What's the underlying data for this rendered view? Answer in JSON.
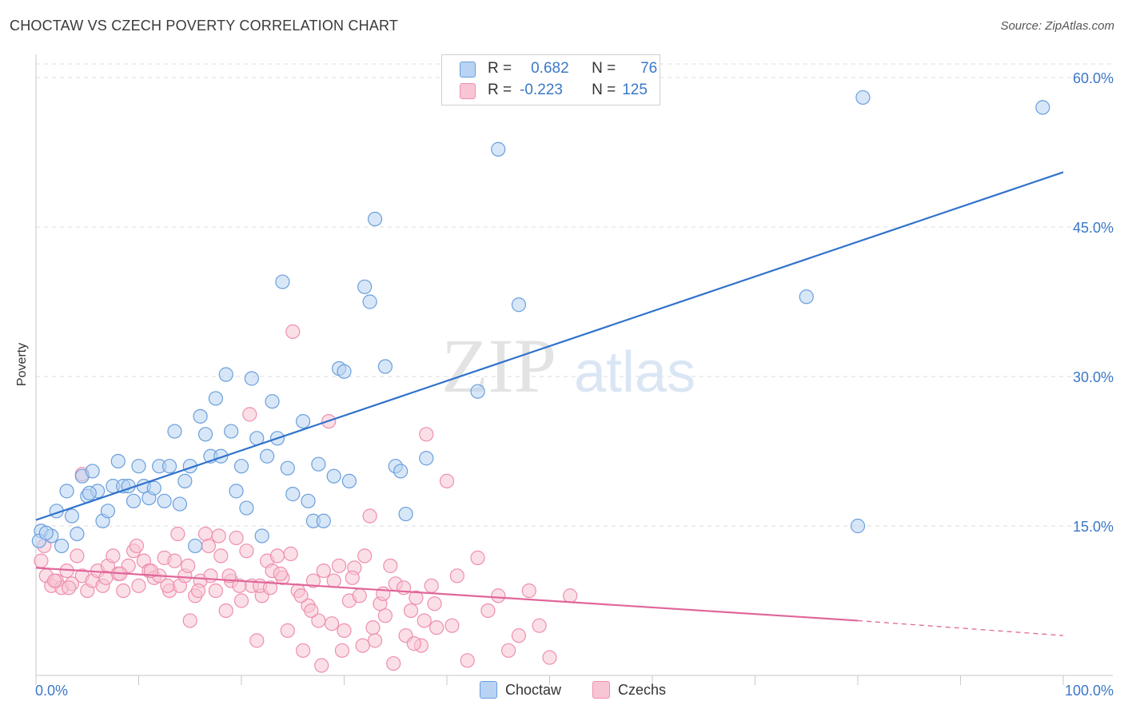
{
  "title": "CHOCTAW VS CZECH POVERTY CORRELATION CHART",
  "source": "Source: ZipAtlas.com",
  "watermark": {
    "zip": "ZIP",
    "atlas": "atlas"
  },
  "legend": {
    "r_label": "R =",
    "n_label": "N =",
    "choctaw": {
      "r": "0.682",
      "n": "76"
    },
    "czechs": {
      "r": "-0.223",
      "n": "125"
    }
  },
  "bottom_legend": {
    "choctaw": "Choctaw",
    "czechs": "Czechs"
  },
  "colors": {
    "choctaw_fill": "#b8d3f3",
    "choctaw_stroke": "#6a9fdc",
    "choctaw_line": "#2f72cc",
    "czechs_fill": "#f8c5d4",
    "czechs_stroke": "#ee8fae",
    "czechs_line": "#e0669a",
    "tick_text": "#3b78c8"
  },
  "chart_data": {
    "type": "scatter",
    "title": "CHOCTAW VS CZECH POVERTY CORRELATION CHART",
    "xlabel": "",
    "ylabel": "Poverty",
    "xlim": [
      0,
      100
    ],
    "ylim": [
      0,
      60.0
    ],
    "x_tick_labels": [
      "0.0%",
      "100.0%"
    ],
    "y_ticks": [
      15,
      30,
      45,
      60
    ],
    "y_tick_labels": [
      "15.0%",
      "30.0%",
      "45.0%",
      "60.0%"
    ],
    "grid": "horizontal dashed",
    "legend_position": "top-center",
    "series": [
      {
        "name": "Choctaw",
        "trend": {
          "x": [
            0,
            100
          ],
          "y": [
            15.6,
            50.5
          ],
          "dashed_from": null
        },
        "points": [
          [
            0.5,
            14.5
          ],
          [
            1.5,
            14.0
          ],
          [
            2.0,
            16.5
          ],
          [
            2.5,
            13.0
          ],
          [
            3.0,
            18.5
          ],
          [
            3.5,
            16.0
          ],
          [
            4.0,
            14.2
          ],
          [
            4.5,
            20.0
          ],
          [
            5.0,
            18.0
          ],
          [
            5.5,
            20.5
          ],
          [
            6.0,
            18.5
          ],
          [
            6.5,
            15.5
          ],
          [
            7.0,
            16.5
          ],
          [
            7.5,
            19.0
          ],
          [
            8.0,
            21.5
          ],
          [
            8.5,
            19.0
          ],
          [
            9.0,
            19.0
          ],
          [
            9.5,
            17.5
          ],
          [
            10.0,
            21.0
          ],
          [
            10.5,
            19.0
          ],
          [
            11.0,
            17.8
          ],
          [
            11.5,
            18.8
          ],
          [
            12.0,
            21.0
          ],
          [
            12.5,
            17.5
          ],
          [
            13.0,
            21.0
          ],
          [
            13.5,
            24.5
          ],
          [
            14.0,
            17.2
          ],
          [
            14.5,
            19.5
          ],
          [
            15.0,
            21.0
          ],
          [
            15.5,
            13.0
          ],
          [
            16.0,
            26.0
          ],
          [
            16.5,
            24.2
          ],
          [
            17.0,
            22.0
          ],
          [
            17.5,
            27.8
          ],
          [
            18.0,
            22.0
          ],
          [
            18.5,
            30.2
          ],
          [
            19.0,
            24.5
          ],
          [
            19.5,
            18.5
          ],
          [
            20.0,
            21.0
          ],
          [
            20.5,
            16.8
          ],
          [
            21.0,
            29.8
          ],
          [
            21.5,
            23.8
          ],
          [
            22.0,
            14.0
          ],
          [
            22.5,
            22.0
          ],
          [
            23.0,
            27.5
          ],
          [
            23.5,
            23.8
          ],
          [
            24.0,
            39.5
          ],
          [
            24.5,
            20.8
          ],
          [
            25.0,
            18.2
          ],
          [
            26.0,
            25.5
          ],
          [
            26.5,
            17.5
          ],
          [
            27.0,
            15.5
          ],
          [
            27.5,
            21.2
          ],
          [
            28.0,
            15.5
          ],
          [
            29.0,
            20.0
          ],
          [
            29.5,
            30.8
          ],
          [
            30.0,
            30.5
          ],
          [
            30.5,
            19.5
          ],
          [
            32.0,
            39.0
          ],
          [
            32.5,
            37.5
          ],
          [
            33.0,
            45.8
          ],
          [
            34.0,
            31.0
          ],
          [
            35.0,
            21.0
          ],
          [
            35.5,
            20.5
          ],
          [
            36.0,
            16.2
          ],
          [
            38.0,
            21.8
          ],
          [
            43.0,
            28.5
          ],
          [
            45.0,
            52.8
          ],
          [
            47.0,
            37.2
          ],
          [
            75.0,
            38.0
          ],
          [
            80.0,
            15.0
          ],
          [
            80.5,
            58.0
          ],
          [
            98.0,
            57.0
          ],
          [
            0.3,
            13.5
          ],
          [
            1.0,
            14.3
          ],
          [
            5.2,
            18.3
          ]
        ]
      },
      {
        "name": "Czechs",
        "trend": {
          "x": [
            0,
            80,
            100
          ],
          "y": [
            10.8,
            5.5,
            4.0
          ],
          "dashed_from": 80
        },
        "points": [
          [
            0.5,
            11.5
          ],
          [
            1.0,
            10.0
          ],
          [
            1.5,
            9.0
          ],
          [
            2.0,
            9.5
          ],
          [
            2.5,
            8.8
          ],
          [
            3.0,
            10.5
          ],
          [
            3.5,
            9.2
          ],
          [
            4.0,
            12.0
          ],
          [
            4.5,
            10.0
          ],
          [
            5.0,
            8.5
          ],
          [
            5.5,
            9.5
          ],
          [
            6.0,
            10.5
          ],
          [
            6.5,
            9.0
          ],
          [
            7.0,
            11.0
          ],
          [
            7.5,
            12.0
          ],
          [
            8.0,
            10.2
          ],
          [
            8.5,
            8.5
          ],
          [
            9.0,
            11.0
          ],
          [
            9.5,
            12.5
          ],
          [
            10.0,
            9.0
          ],
          [
            10.5,
            11.5
          ],
          [
            11.0,
            10.5
          ],
          [
            11.5,
            9.8
          ],
          [
            12.0,
            10.0
          ],
          [
            12.5,
            11.8
          ],
          [
            13.0,
            8.5
          ],
          [
            13.5,
            11.5
          ],
          [
            14.0,
            9.0
          ],
          [
            14.5,
            10.0
          ],
          [
            15.0,
            5.5
          ],
          [
            15.5,
            8.0
          ],
          [
            16.0,
            9.5
          ],
          [
            16.5,
            14.2
          ],
          [
            17.0,
            10.0
          ],
          [
            17.5,
            8.5
          ],
          [
            18.0,
            12.0
          ],
          [
            18.5,
            6.5
          ],
          [
            19.0,
            9.5
          ],
          [
            19.5,
            13.8
          ],
          [
            20.0,
            7.5
          ],
          [
            20.5,
            12.5
          ],
          [
            21.0,
            9.0
          ],
          [
            21.5,
            3.5
          ],
          [
            22.0,
            8.0
          ],
          [
            22.5,
            11.5
          ],
          [
            23.0,
            10.5
          ],
          [
            23.5,
            12.0
          ],
          [
            24.0,
            9.8
          ],
          [
            24.5,
            4.5
          ],
          [
            25.0,
            34.5
          ],
          [
            25.5,
            8.5
          ],
          [
            26.0,
            2.5
          ],
          [
            26.5,
            7.0
          ],
          [
            27.0,
            9.5
          ],
          [
            27.5,
            5.5
          ],
          [
            28.0,
            10.5
          ],
          [
            28.5,
            25.5
          ],
          [
            29.0,
            9.5
          ],
          [
            29.5,
            11.0
          ],
          [
            30.0,
            4.5
          ],
          [
            30.5,
            7.5
          ],
          [
            31.0,
            10.8
          ],
          [
            31.5,
            8.0
          ],
          [
            32.0,
            12.0
          ],
          [
            32.5,
            16.0
          ],
          [
            33.0,
            3.5
          ],
          [
            33.5,
            7.2
          ],
          [
            34.0,
            6.0
          ],
          [
            34.5,
            11.0
          ],
          [
            35.0,
            9.2
          ],
          [
            36.0,
            4.0
          ],
          [
            36.5,
            6.5
          ],
          [
            37.0,
            7.8
          ],
          [
            37.5,
            3.0
          ],
          [
            38.0,
            24.2
          ],
          [
            38.5,
            9.0
          ],
          [
            39.0,
            4.8
          ],
          [
            40.0,
            19.5
          ],
          [
            40.5,
            5.0
          ],
          [
            41.0,
            10.0
          ],
          [
            42.0,
            1.5
          ],
          [
            43.0,
            11.8
          ],
          [
            44.0,
            6.5
          ],
          [
            45.0,
            8.0
          ],
          [
            46.0,
            2.5
          ],
          [
            47.0,
            4.0
          ],
          [
            48.0,
            8.5
          ],
          [
            49.0,
            5.0
          ],
          [
            50.0,
            1.8
          ],
          [
            52.0,
            8.0
          ],
          [
            4.5,
            20.2
          ],
          [
            0.8,
            13.0
          ],
          [
            1.8,
            9.5
          ],
          [
            3.2,
            8.8
          ],
          [
            6.8,
            9.8
          ],
          [
            8.2,
            10.2
          ],
          [
            9.8,
            13.0
          ],
          [
            11.2,
            10.5
          ],
          [
            12.8,
            9.0
          ],
          [
            13.8,
            14.2
          ],
          [
            14.8,
            11.0
          ],
          [
            15.8,
            8.5
          ],
          [
            16.8,
            13.0
          ],
          [
            17.8,
            14.0
          ],
          [
            18.8,
            10.0
          ],
          [
            19.8,
            9.0
          ],
          [
            20.8,
            26.2
          ],
          [
            21.8,
            9.0
          ],
          [
            22.8,
            8.8
          ],
          [
            23.8,
            10.2
          ],
          [
            24.8,
            12.2
          ],
          [
            25.8,
            8.0
          ],
          [
            26.8,
            6.5
          ],
          [
            27.8,
            1.0
          ],
          [
            28.8,
            5.2
          ],
          [
            29.8,
            2.5
          ],
          [
            30.8,
            9.8
          ],
          [
            31.8,
            3.0
          ],
          [
            32.8,
            4.8
          ],
          [
            33.8,
            8.2
          ],
          [
            34.8,
            1.2
          ],
          [
            35.8,
            8.8
          ],
          [
            36.8,
            3.2
          ],
          [
            37.8,
            5.5
          ],
          [
            38.8,
            7.2
          ]
        ]
      }
    ]
  }
}
